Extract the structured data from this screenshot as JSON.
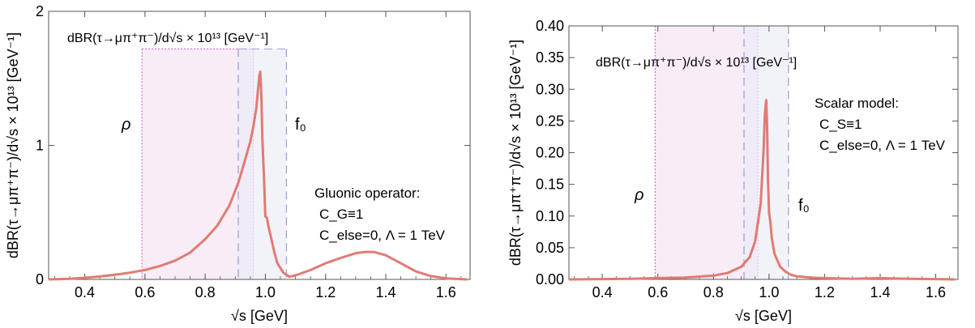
{
  "colors": {
    "curve": "#e07b73",
    "rho_band_fill": "#f6e6f4",
    "rho_band_edge": "#d050c0",
    "f0_band_fill": "#ecedf7",
    "f0_band_edge": "#9aa6d6",
    "frame": "#555555"
  },
  "chart_data": [
    {
      "type": "line",
      "title": "",
      "inner_label": "dBR(τ→μπ⁺π⁻)/d√s × 10¹³ [GeV⁻¹]",
      "xlabel": "√s [GeV]",
      "ylabel": "dBR(τ→μπ⁺π⁻)/d√s × 10¹³ [GeV⁻¹]",
      "xlim": [
        0.28,
        1.68
      ],
      "ylim": [
        0,
        2
      ],
      "xticks": [
        0.4,
        0.6,
        0.8,
        1.0,
        1.2,
        1.4,
        1.6
      ],
      "xtick_labels": [
        "0.4",
        "0.6",
        "0.8",
        "1.0",
        "1.2",
        "1.4",
        "1.6"
      ],
      "yticks": [
        0,
        1,
        2
      ],
      "ytick_labels": [
        "0",
        "1",
        "2"
      ],
      "grid": false,
      "annotation_lines": [
        "Gluonic operator:",
        "C_G≡1",
        "C_else=0, Λ = 1 TeV"
      ],
      "bands": [
        {
          "label": "ρ",
          "x_range": [
            0.59,
            0.96
          ],
          "top": 1.72,
          "kind": "rho"
        },
        {
          "label": "f₀",
          "x_range": [
            0.91,
            1.07
          ],
          "top": 1.72,
          "kind": "f0"
        }
      ],
      "series": [
        {
          "x": [
            0.28,
            0.35,
            0.4,
            0.45,
            0.5,
            0.55,
            0.6,
            0.65,
            0.7,
            0.75,
            0.8,
            0.84,
            0.88,
            0.91,
            0.93,
            0.95,
            0.96,
            0.97,
            0.975,
            0.98,
            0.983,
            0.987,
            0.99,
            0.995,
            1.0,
            1.005,
            1.01,
            1.02,
            1.03,
            1.04,
            1.06,
            1.08,
            1.1,
            1.15,
            1.2,
            1.25,
            1.3,
            1.33,
            1.36,
            1.4,
            1.45,
            1.5,
            1.55,
            1.6,
            1.67
          ],
          "values": [
            0.0,
            0.005,
            0.012,
            0.022,
            0.035,
            0.05,
            0.07,
            0.1,
            0.14,
            0.2,
            0.3,
            0.4,
            0.55,
            0.72,
            0.87,
            1.03,
            1.14,
            1.28,
            1.4,
            1.52,
            1.55,
            1.35,
            1.05,
            0.78,
            0.47,
            0.46,
            0.4,
            0.3,
            0.2,
            0.12,
            0.05,
            0.02,
            0.03,
            0.07,
            0.12,
            0.16,
            0.195,
            0.205,
            0.205,
            0.18,
            0.12,
            0.06,
            0.025,
            0.008,
            0.0
          ]
        }
      ]
    },
    {
      "type": "line",
      "title": "",
      "inner_label": "dBR(τ→μπ⁺π⁻)/d√s × 10¹³ [GeV⁻¹]",
      "xlabel": "√s [GeV]",
      "ylabel": "dBR(τ→μπ⁺π⁻)/d√s × 10¹³ [GeV⁻¹]",
      "xlim": [
        0.28,
        1.68
      ],
      "ylim": [
        0,
        0.4
      ],
      "xticks": [
        0.4,
        0.6,
        0.8,
        1.0,
        1.2,
        1.4,
        1.6
      ],
      "xtick_labels": [
        "0.4",
        "0.6",
        "0.8",
        "1.0",
        "1.2",
        "1.4",
        "1.6"
      ],
      "yticks": [
        0,
        0.05,
        0.1,
        0.15,
        0.2,
        0.25,
        0.3,
        0.35,
        0.4
      ],
      "ytick_labels": [
        "0.00",
        "0.05",
        "0.10",
        "0.15",
        "0.20",
        "0.25",
        "0.30",
        "0.35",
        "0.40"
      ],
      "grid": false,
      "annotation_lines": [
        "Scalar model:",
        "C_S≡1",
        "C_else=0, Λ = 1 TeV"
      ],
      "bands": [
        {
          "label": "ρ",
          "x_range": [
            0.59,
            0.96
          ],
          "top": 0.4,
          "kind": "rho"
        },
        {
          "label": "f₀",
          "x_range": [
            0.91,
            1.07
          ],
          "top": 0.4,
          "kind": "f0"
        }
      ],
      "series": [
        {
          "x": [
            0.28,
            0.4,
            0.5,
            0.6,
            0.7,
            0.8,
            0.85,
            0.9,
            0.93,
            0.95,
            0.97,
            0.98,
            0.985,
            0.99,
            0.993,
            0.996,
            1.0,
            1.005,
            1.01,
            1.02,
            1.04,
            1.06,
            1.08,
            1.1,
            1.15,
            1.2,
            1.3,
            1.4,
            1.5,
            1.6,
            1.67
          ],
          "values": [
            0.0,
            0.0005,
            0.001,
            0.002,
            0.003,
            0.006,
            0.01,
            0.02,
            0.035,
            0.06,
            0.12,
            0.2,
            0.26,
            0.283,
            0.24,
            0.16,
            0.105,
            0.09,
            0.065,
            0.04,
            0.02,
            0.012,
            0.007,
            0.005,
            0.003,
            0.002,
            0.001,
            0.002,
            0.001,
            0.0005,
            0.0
          ]
        }
      ]
    }
  ]
}
